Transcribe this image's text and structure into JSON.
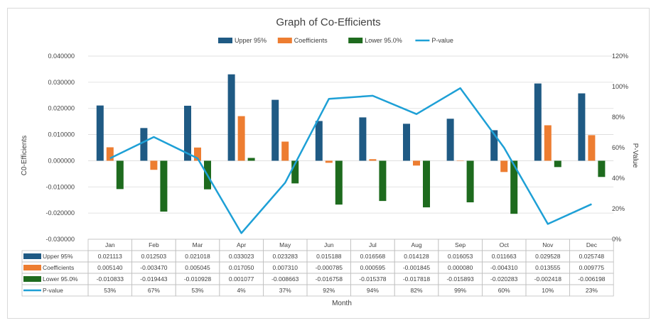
{
  "chart_data": {
    "type": "bar",
    "title": "Graph of Co-Efficients",
    "xlabel": "Month",
    "ylabel": "C0-Efficients",
    "y2label": "P-Value",
    "ylim": [
      -0.03,
      0.04
    ],
    "yticks": [
      "0.040000",
      "0.030000",
      "0.020000",
      "0.010000",
      "0.000000",
      "-0.010000",
      "-0.020000",
      "-0.030000"
    ],
    "y2lim": [
      0,
      1.2
    ],
    "y2ticks": [
      "120%",
      "100%",
      "80%",
      "60%",
      "40%",
      "20%",
      "0%"
    ],
    "legend_position": "top-center",
    "categories": [
      "Jan",
      "Feb",
      "Mar",
      "Apr",
      "May",
      "Jun",
      "Jul",
      "Aug",
      "Sep",
      "Oct",
      "Nov",
      "Dec"
    ],
    "series": [
      {
        "name": "Upper 95%",
        "kind": "bar",
        "color": "#1f5a84",
        "values": [
          0.021113,
          0.012503,
          0.021018,
          0.033023,
          0.023283,
          0.015188,
          0.016568,
          0.014128,
          0.016053,
          0.011663,
          0.029528,
          0.025748
        ],
        "labels": [
          "0.021113",
          "0.012503",
          "0.021018",
          "0.033023",
          "0.023283",
          "0.015188",
          "0.016568",
          "0.014128",
          "0.016053",
          "0.011663",
          "0.029528",
          "0.025748"
        ]
      },
      {
        "name": "Coefficients",
        "kind": "bar",
        "color": "#ed7d31",
        "values": [
          0.00514,
          -0.00347,
          0.005045,
          0.01705,
          0.00731,
          -0.000785,
          0.000595,
          -0.001845,
          8e-05,
          -0.00431,
          0.013555,
          0.009775
        ],
        "labels": [
          "0.005140",
          "-0.003470",
          "0.005045",
          "0.017050",
          "0.007310",
          "-0.000785",
          "0.000595",
          "-0.001845",
          "0.000080",
          "-0.004310",
          "0.013555",
          "0.009775"
        ]
      },
      {
        "name": "Lower 95.0%",
        "kind": "bar",
        "color": "#1e6b1e",
        "values": [
          -0.010833,
          -0.019443,
          -0.010928,
          0.001077,
          -0.008663,
          -0.016758,
          -0.015378,
          -0.017818,
          -0.015893,
          -0.020283,
          -0.002418,
          -0.006198
        ],
        "labels": [
          "-0.010833",
          "-0.019443",
          "-0.010928",
          "0.001077",
          "-0.008663",
          "-0.016758",
          "-0.015378",
          "-0.017818",
          "-0.015893",
          "-0.020283",
          "-0.002418",
          "-0.006198"
        ]
      },
      {
        "name": "P-value",
        "kind": "line",
        "axis": "secondary",
        "color": "#1ea0d6",
        "values": [
          0.53,
          0.67,
          0.53,
          0.04,
          0.37,
          0.92,
          0.94,
          0.82,
          0.99,
          0.6,
          0.1,
          0.23
        ],
        "labels": [
          "53%",
          "67%",
          "53%",
          "4%",
          "37%",
          "92%",
          "94%",
          "82%",
          "99%",
          "60%",
          "10%",
          "23%"
        ]
      }
    ]
  }
}
